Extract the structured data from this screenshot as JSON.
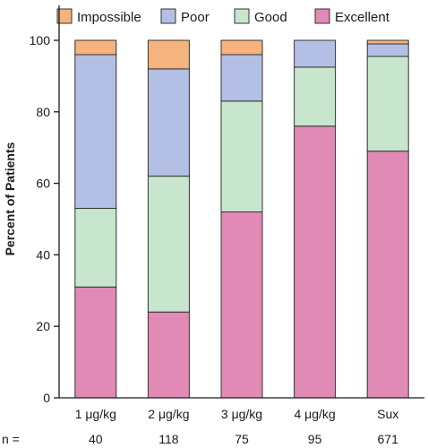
{
  "chart_data": {
    "type": "bar",
    "stacked": true,
    "ylabel": "Percent of Patients",
    "ylim": [
      0,
      100
    ],
    "yticks": [
      0,
      20,
      40,
      60,
      80,
      100
    ],
    "grid": false,
    "legend_position": "top",
    "categories": [
      "1 μg/kg",
      "2 μg/kg",
      "3 μg/kg",
      "4 μg/kg",
      "Sux"
    ],
    "n_label": "n =",
    "n_values": [
      "40",
      "118",
      "75",
      "95",
      "671"
    ],
    "series": [
      {
        "name": "Excellent",
        "color": "#e08ab5",
        "values": [
          31,
          24,
          52,
          76,
          69
        ]
      },
      {
        "name": "Good",
        "color": "#c7e6cd",
        "values": [
          22,
          38,
          31,
          16.5,
          26.5
        ]
      },
      {
        "name": "Poor",
        "color": "#b4bfe6",
        "values": [
          43,
          30,
          13,
          7.5,
          3.5
        ]
      },
      {
        "name": "Impossible",
        "color": "#f5b37d",
        "values": [
          4,
          8,
          4,
          0,
          1
        ]
      }
    ],
    "legend_order": [
      "Impossible",
      "Poor",
      "Good",
      "Excellent"
    ]
  }
}
